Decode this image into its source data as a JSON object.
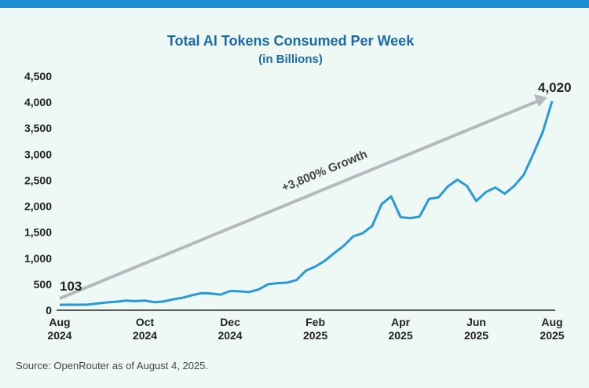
{
  "chart_data": {
    "type": "line",
    "title": "Total AI Tokens Consumed Per Week",
    "subtitle": "(in Billions)",
    "source": "Source: OpenRouter as of August 4, 2025.",
    "annotation": "+3,800% Growth",
    "categories": [
      "Aug 2024",
      null,
      null,
      null,
      null,
      null,
      null,
      null,
      null,
      "Oct 2024",
      null,
      null,
      null,
      null,
      null,
      null,
      null,
      null,
      "Dec 2024",
      null,
      null,
      null,
      null,
      null,
      null,
      null,
      null,
      "Feb 2025",
      null,
      null,
      null,
      null,
      null,
      null,
      null,
      null,
      "Apr 2025",
      null,
      null,
      null,
      null,
      null,
      null,
      null,
      "Jun 2025",
      null,
      null,
      null,
      null,
      null,
      null,
      null,
      "Aug 2025"
    ],
    "series": [
      {
        "name": "Tokens",
        "color": "#2a9ad6",
        "values": [
          103,
          108,
          105,
          110,
          130,
          150,
          165,
          185,
          175,
          185,
          155,
          170,
          210,
          240,
          290,
          330,
          320,
          300,
          370,
          365,
          350,
          400,
          500,
          520,
          530,
          580,
          760,
          840,
          950,
          1100,
          1240,
          1420,
          1480,
          1620,
          2040,
          2190,
          1790,
          1770,
          1800,
          2140,
          2170,
          2380,
          2510,
          2390,
          2100,
          2270,
          2360,
          2240,
          2390,
          2600,
          3000,
          3420,
          4020
        ],
        "value_labels": [
          "103",
          null,
          null,
          null,
          null,
          null,
          null,
          null,
          null,
          null,
          null,
          null,
          null,
          null,
          null,
          null,
          null,
          null,
          null,
          null,
          null,
          null,
          null,
          null,
          null,
          null,
          null,
          null,
          null,
          null,
          null,
          null,
          null,
          null,
          null,
          null,
          null,
          null,
          null,
          null,
          null,
          null,
          null,
          null,
          null,
          null,
          null,
          null,
          null,
          null,
          null,
          null,
          "4,020"
        ]
      }
    ],
    "ylim": [
      0,
      4500
    ],
    "yticks": [
      0,
      500,
      {
        "value": 1000,
        "label": "1,000"
      },
      {
        "value": 1500,
        "label": "1,500"
      },
      {
        "value": 2000,
        "label": "2,000"
      },
      {
        "value": 2500,
        "label": "2,500"
      },
      {
        "value": 3000,
        "label": "3,000"
      },
      {
        "value": 3500,
        "label": "3,500"
      },
      {
        "value": 4000,
        "label": "4,000"
      },
      {
        "value": 4500,
        "label": "4,500"
      }
    ]
  }
}
